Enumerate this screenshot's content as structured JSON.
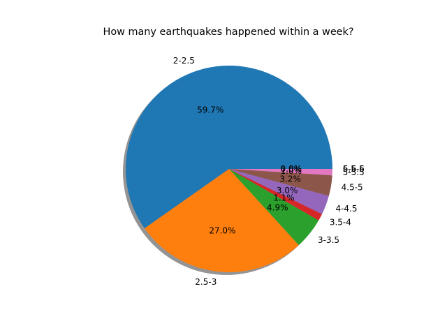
{
  "chart_data": {
    "type": "pie",
    "title": "How many earthquakes happened within a week?",
    "categories": [
      "2-2.5",
      "2.5-3",
      "3-3.5",
      "3.5-4",
      "4-4.5",
      "4.5-5",
      "5-5.5",
      "5.5-6",
      "6-6.5"
    ],
    "values": [
      59.7,
      27.0,
      4.9,
      1.1,
      3.0,
      3.2,
      1.0,
      0.0,
      0.0
    ],
    "value_labels": [
      "59.7%",
      "27.0%",
      "4.9%",
      "1.1%",
      "3.0%",
      "3.2%",
      "1.0%",
      "0.0%",
      "0.0%"
    ],
    "colors": [
      "#1f77b4",
      "#ff7f0e",
      "#2ca02c",
      "#d62728",
      "#9467bd",
      "#8c564b",
      "#e377c2",
      "#7f7f7f",
      "#bcbd22"
    ],
    "start_angle_deg": 0,
    "direction": "counterclockwise",
    "shadow": true,
    "legend": "none"
  }
}
